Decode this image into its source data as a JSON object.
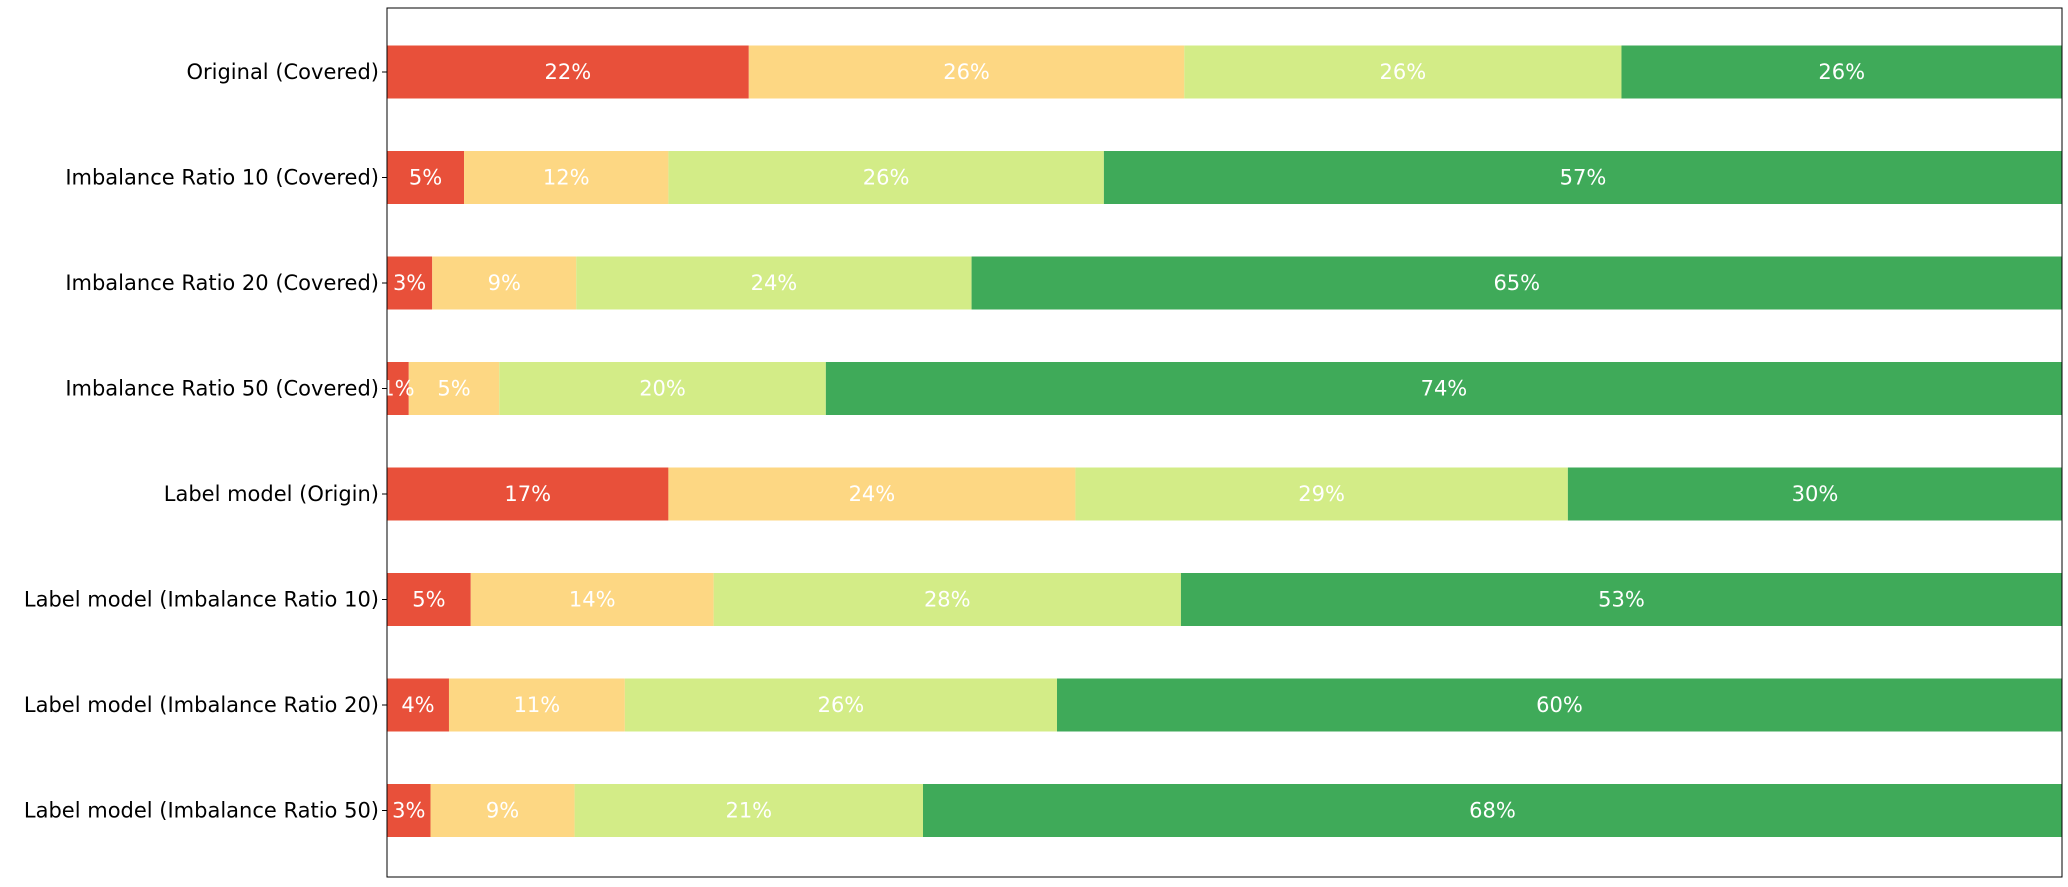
{
  "chart_data": {
    "type": "bar",
    "orientation": "horizontal",
    "stacked": true,
    "categories": [
      "Original (Covered)",
      "Imbalance Ratio 10 (Covered)",
      "Imbalance Ratio 20 (Covered)",
      "Imbalance Ratio 50 (Covered)",
      "Label model (Origin)",
      "Label model (Imbalance Ratio 10)",
      "Label model (Imbalance Ratio 20)",
      "Label model (Imbalance Ratio 50)"
    ],
    "series": [
      {
        "color": "#e8503a",
        "values": [
          21.6,
          4.6,
          2.7,
          1.3,
          16.8,
          5.0,
          3.7,
          2.6
        ]
      },
      {
        "color": "#fdd783",
        "values": [
          26.0,
          12.2,
          8.6,
          5.4,
          24.3,
          14.5,
          10.5,
          8.6
        ]
      },
      {
        "color": "#d3ec87",
        "values": [
          26.1,
          26.0,
          23.6,
          19.5,
          29.4,
          27.9,
          25.8,
          20.8
        ]
      },
      {
        "color": "#3faa59",
        "values": [
          26.3,
          57.2,
          65.1,
          73.8,
          29.5,
          52.6,
          60.0,
          68.0
        ]
      }
    ],
    "data_labels": [
      [
        "22%",
        "26%",
        "26%",
        "26%"
      ],
      [
        "5%",
        "12%",
        "26%",
        "57%"
      ],
      [
        "3%",
        "9%",
        "24%",
        "65%"
      ],
      [
        "1%",
        "5%",
        "20%",
        "74%"
      ],
      [
        "17%",
        "24%",
        "29%",
        "30%"
      ],
      [
        "5%",
        "14%",
        "28%",
        "53%"
      ],
      [
        "4%",
        "11%",
        "26%",
        "60%"
      ],
      [
        "3%",
        "9%",
        "21%",
        "68%"
      ]
    ],
    "xlim": [
      0,
      100
    ],
    "grid": false,
    "legend": "none",
    "title": "",
    "xlabel": "",
    "ylabel": ""
  }
}
